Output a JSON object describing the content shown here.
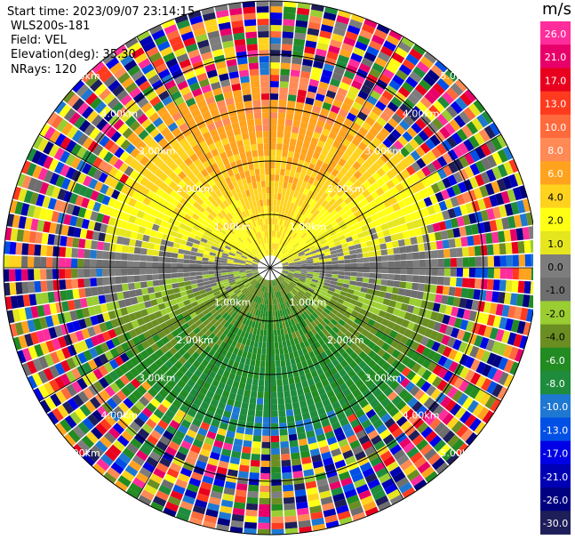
{
  "header": {
    "start_time": "Start time: 2023/09/07 23:14:15",
    "station": "WLS200s-181",
    "field": "Field: VEL",
    "elevation": "Elevation(deg): 35.30",
    "nrays": "NRays: 120"
  },
  "chart_data": {
    "type": "heatmap",
    "title": "",
    "projection": "polar (PPI)",
    "range_rings_km": [
      1.0,
      2.0,
      3.0,
      4.0,
      5.0
    ],
    "range_ring_labels": [
      "1.00km",
      "2.00km",
      "3.00km",
      "4.00km",
      "5.00km"
    ],
    "azimuth_lines_deg": [
      0,
      30,
      60,
      90,
      120,
      150,
      180,
      210,
      240,
      270,
      300,
      330
    ],
    "nrays": 120,
    "colorbar": {
      "unit": "m/s",
      "ticks": [
        "26.0",
        "21.0",
        "17.0",
        "13.0",
        "10.0",
        "8.0",
        "6.0",
        "4.0",
        "2.0",
        "1.0",
        "0.0",
        "-1.0",
        "-2.0",
        "-4.0",
        "-6.0",
        "-8.0",
        "-10.0",
        "-13.0",
        "-17.0",
        "-21.0",
        "-26.0",
        "-30.0"
      ],
      "colors": [
        "#ff2d9b",
        "#e8006a",
        "#e8001e",
        "#ff3a1e",
        "#ff6a3c",
        "#ff8a55",
        "#ffa31e",
        "#ffd21e",
        "#ffff14",
        "#e6e61e",
        "#7d7d7d",
        "#6e6e6e",
        "#9acd32",
        "#6b8e23",
        "#228b22",
        "#1e8c3c",
        "#1e78d2",
        "#0050e6",
        "#0000e6",
        "#0000b4",
        "#000080",
        "#1e1e5a"
      ]
    },
    "pattern": "near-field velocities: positive (yellow/orange, 2 to 8 m/s) in the northern half, negative (green/blue, -2 to -10 m/s) in the southern half, near-zero grey along the east-west axis; far ranges show noisy speckle across all colors"
  }
}
